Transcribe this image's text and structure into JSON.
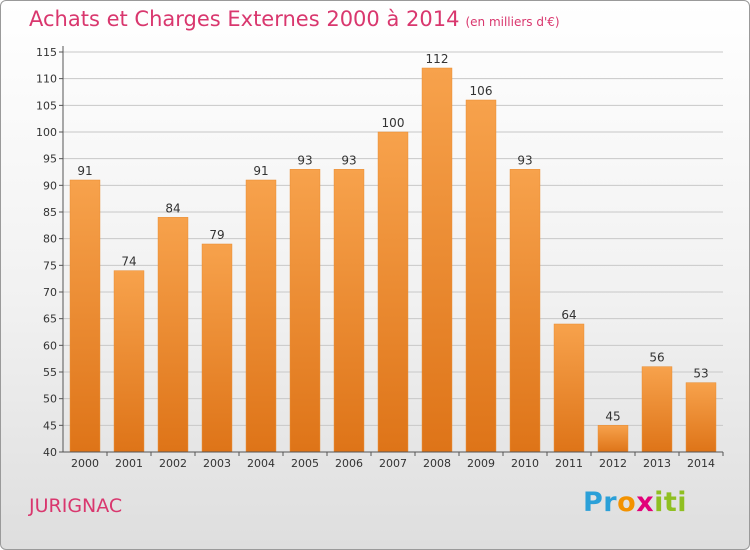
{
  "title": "Achats et Charges Externes 2000 à 2014",
  "unit_label": "(en milliers d'€)",
  "place": "JURIGNAC",
  "logo": {
    "text": "Proxiti",
    "letters": [
      "P",
      "r",
      "o",
      "x",
      "i",
      "t",
      "i"
    ],
    "colors": [
      "#2ba0d8",
      "#2ba0d8",
      "#f39200",
      "#e2007a",
      "#8fbf21",
      "#8fbf21",
      "#8fbf21"
    ]
  },
  "colors": {
    "bar": "#f39a3c",
    "bar_dark": "#d9771a",
    "title": "#d9376e",
    "grid": "#c8c8c8"
  },
  "chart_data": {
    "type": "bar",
    "categories": [
      "2000",
      "2001",
      "2002",
      "2003",
      "2004",
      "2005",
      "2006",
      "2007",
      "2008",
      "2009",
      "2010",
      "2011",
      "2012",
      "2013",
      "2014"
    ],
    "values": [
      91,
      74,
      84,
      79,
      91,
      93,
      93,
      100,
      112,
      106,
      93,
      64,
      45,
      56,
      53
    ],
    "ylim": [
      40,
      115
    ],
    "yticks": [
      40,
      45,
      50,
      55,
      60,
      65,
      70,
      75,
      80,
      85,
      90,
      95,
      100,
      105,
      110,
      115
    ],
    "title": "Achats et Charges Externes 2000 à 2014",
    "xlabel": "",
    "ylabel": "",
    "grid": true
  }
}
